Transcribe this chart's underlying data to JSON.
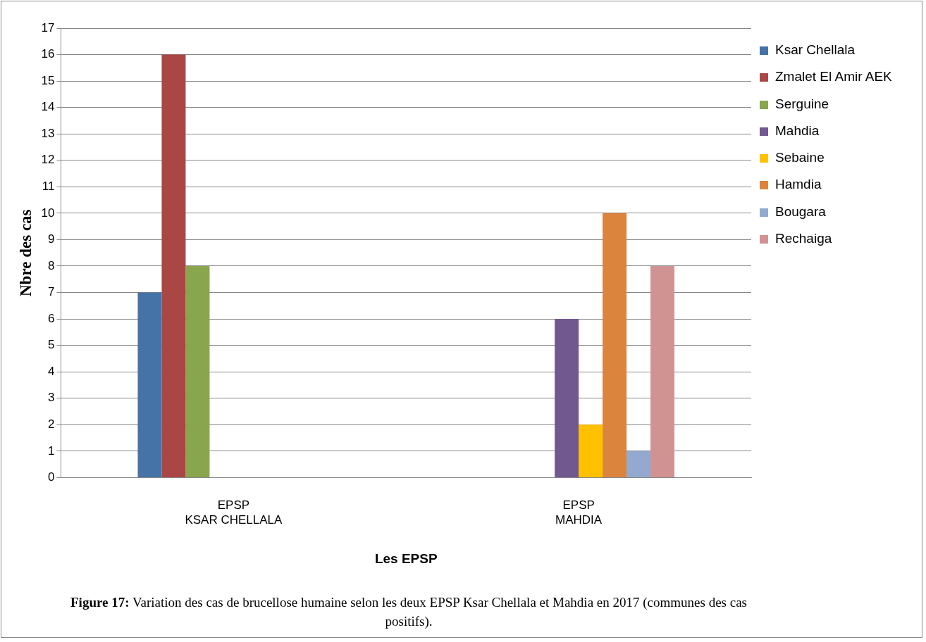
{
  "chart_data": {
    "type": "bar",
    "title": "Figure 17: Variation des cas de brucellose humaine selon les deux EPSP Ksar Chellala et Mahdia en 2017 (communes des cas positifs).",
    "xlabel": "Les EPSP",
    "ylabel": "Nbre des cas",
    "categories": [
      "EPSP\nKSAR CHELLALA",
      "EPSP\nMAHDIA"
    ],
    "series": [
      {
        "name": "Ksar Chellala",
        "color": "#4572a7",
        "values": [
          7,
          null
        ]
      },
      {
        "name": "Zmalet El Amir AEK",
        "color": "#aa4643",
        "values": [
          16,
          null
        ]
      },
      {
        "name": "Serguine",
        "color": "#89a54e",
        "values": [
          8,
          null
        ]
      },
      {
        "name": "Mahdia",
        "color": "#71588f",
        "values": [
          null,
          6
        ]
      },
      {
        "name": "Sebaine",
        "color": "#ffc000",
        "values": [
          null,
          2
        ]
      },
      {
        "name": "Hamdia",
        "color": "#db843d",
        "values": [
          null,
          10
        ]
      },
      {
        "name": "Bougara",
        "color": "#93a9cf",
        "values": [
          null,
          1
        ]
      },
      {
        "name": "Rechaiga",
        "color": "#d19392",
        "values": [
          null,
          8
        ]
      }
    ],
    "ylim": [
      0,
      17
    ],
    "yticks": [
      0,
      1,
      2,
      3,
      4,
      5,
      6,
      7,
      8,
      9,
      10,
      11,
      12,
      13,
      14,
      15,
      16,
      17
    ],
    "grid": "y",
    "legend": "right"
  }
}
